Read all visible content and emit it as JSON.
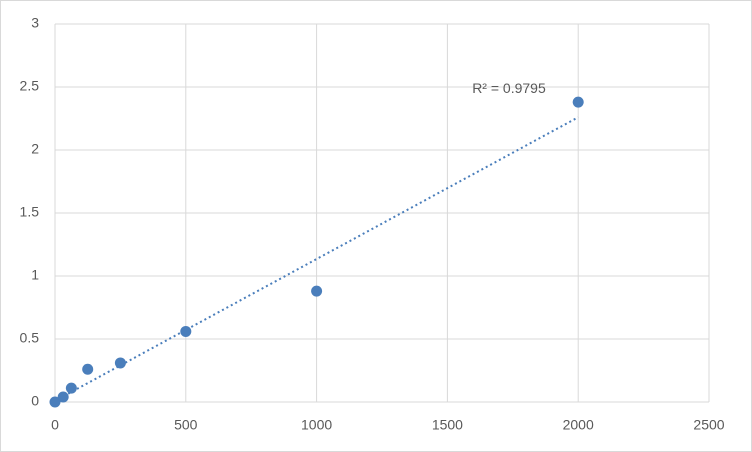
{
  "chart_data": {
    "type": "scatter",
    "x": [
      0,
      31.25,
      62.5,
      125,
      250,
      500,
      1000,
      2000
    ],
    "series": [
      {
        "color": "#4a7ebb",
        "values": [
          0,
          0.04,
          0.11,
          0.26,
          0.31,
          0.56,
          0.88,
          2.38
        ]
      }
    ],
    "xlim": [
      0,
      2500
    ],
    "xticks": [
      0,
      500,
      1000,
      1500,
      2000,
      2500
    ],
    "ylim": [
      0,
      3
    ],
    "yticks": [
      0,
      0.5,
      1,
      1.5,
      2,
      2.5,
      3
    ],
    "grid": true,
    "trendline": "linear",
    "annotation": "R² = 0.9795"
  }
}
